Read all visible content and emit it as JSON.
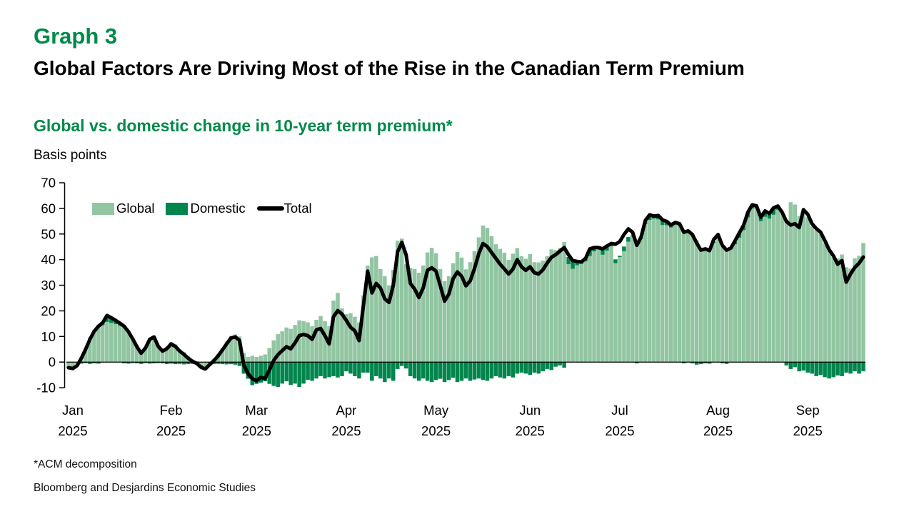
{
  "header": {
    "graph_label": "Graph 3",
    "title": "Global Factors Are Driving Most of the Rise in the Canadian Term Premium",
    "subtitle": "Global vs. domestic change in 10-year term premium*",
    "units_label": "Basis points"
  },
  "legend": {
    "global_label": "Global",
    "domestic_label": "Domestic",
    "total_label": "Total"
  },
  "footnotes": {
    "note": "*ACM decomposition",
    "source": "Bloomberg and Desjardins Economic Studies"
  },
  "colors": {
    "accent_green": "#008a4a",
    "global_bar": "#92c5a2",
    "domestic_bar": "#00854c",
    "total_line": "#000000",
    "axis": "#000000"
  },
  "chart_data": {
    "type": "bar",
    "stacked": true,
    "line_overlay": "Total",
    "title": "Global vs. domestic change in 10-year term premium*",
    "ylabel": "Basis points",
    "ylim": [
      -10,
      70
    ],
    "ytick_step": 10,
    "grid": false,
    "legend_position": "top-left-inside",
    "x_axis": {
      "frequency": "business-daily",
      "months": [
        "Jan",
        "Feb",
        "Mar",
        "Apr",
        "May",
        "Jun",
        "Jul",
        "Aug",
        "Sep"
      ],
      "year": "2025",
      "month_start_indices": [
        0,
        23,
        43,
        64,
        85,
        107,
        128,
        151,
        172
      ]
    },
    "series": [
      {
        "name": "Global",
        "type": "bar",
        "color": "#92c5a2",
        "values": [
          -1.7,
          -1.8,
          -1.0,
          2.1,
          5.4,
          9.6,
          12.5,
          14.6,
          14.4,
          15.7,
          15.3,
          14.8,
          14.2,
          14.5,
          12.5,
          9.5,
          6.5,
          4.2,
          5.9,
          9.5,
          10.3,
          6.5,
          4.8,
          6.0,
          7.7,
          6.9,
          5.0,
          3.9,
          2.3,
          1.0,
          0.4,
          -1.2,
          -1.9,
          -0.1,
          1.3,
          3.1,
          5.5,
          8.0,
          10.2,
          10.8,
          10.0,
          3.5,
          2.0,
          2.5,
          2.0,
          2.5,
          3.0,
          5.5,
          8.5,
          10.9,
          12.0,
          13.5,
          13.0,
          14.5,
          16.3,
          16.0,
          15.5,
          14.0,
          16.5,
          18.0,
          16.0,
          14.0,
          24.0,
          27.0,
          21.0,
          18.7,
          19.1,
          17.7,
          15.5,
          26.0,
          37.7,
          40.9,
          41.4,
          36.3,
          33.5,
          30.0,
          36.0,
          47.4,
          48.2,
          38.2,
          36.8,
          36.3,
          34.9,
          37.7,
          42.8,
          44.6,
          42.5,
          36.3,
          31.6,
          33.5,
          38.6,
          43.0,
          40.8,
          36.2,
          39.0,
          43.3,
          48.7,
          53.3,
          52.4,
          49.2,
          46.0,
          44.2,
          42.7,
          39.9,
          42.3,
          44.5,
          41.3,
          40.3,
          42.2,
          39.0,
          38.9,
          39.6,
          41.3,
          44.0,
          43.7,
          44.6,
          46.9,
          38.2,
          36.4,
          37.8,
          38.3,
          39.3,
          41.4,
          43.2,
          44.2,
          41.9,
          43.5,
          45.3,
          38.6,
          41.0,
          43.3,
          47.0,
          49.0,
          46.0,
          48.0,
          53.8,
          55.5,
          56.0,
          55.7,
          53.5,
          53.4,
          52.5,
          54.0,
          53.0,
          51.2,
          50.7,
          50.3,
          47.5,
          44.5,
          44.7,
          44.1,
          46.5,
          48.5,
          45.0,
          43.5,
          44.0,
          46.0,
          48.5,
          51.5,
          56.5,
          60.0,
          60.0,
          55.0,
          56.7,
          56.0,
          57.5,
          59.5,
          58.0,
          55.5,
          62.4,
          61.5,
          57.0,
          59.0,
          56.5,
          53.0,
          51.5,
          50.0,
          46.5,
          43.5,
          41.0,
          40.5,
          42.0,
          37.0,
          36.5,
          40.5,
          41.5,
          46.5
        ]
      },
      {
        "name": "Domestic",
        "type": "bar",
        "color": "#00854c",
        "values": [
          -0.5,
          -0.7,
          -0.4,
          -0.6,
          -0.4,
          -0.7,
          -0.5,
          -0.6,
          1.0,
          2.5,
          2.0,
          1.5,
          1.0,
          -0.5,
          -0.6,
          -0.4,
          -0.5,
          -0.7,
          -0.4,
          -0.6,
          -0.5,
          -0.4,
          -0.5,
          -0.8,
          -0.6,
          -0.8,
          -0.7,
          -0.9,
          -0.8,
          -0.7,
          -0.9,
          -0.8,
          -0.8,
          -0.9,
          -0.8,
          -0.7,
          -0.8,
          -0.9,
          -0.8,
          -1.0,
          -1.5,
          -4.5,
          -6.5,
          -9.0,
          -8.5,
          -8.0,
          -7.5,
          -8.5,
          -9.3,
          -9.7,
          -8.4,
          -7.5,
          -8.9,
          -8.4,
          -9.7,
          -8.4,
          -6.9,
          -7.3,
          -6.4,
          -5.5,
          -6.4,
          -5.9,
          -5.5,
          -6.0,
          -5.5,
          -3.6,
          -4.5,
          -5.5,
          -6.4,
          -4.1,
          -4.1,
          -7.3,
          -5.5,
          -6.4,
          -7.8,
          -6.4,
          -7.3,
          -2.7,
          -1.5,
          -2.5,
          -5.5,
          -6.4,
          -7.3,
          -6.4,
          -7.3,
          -7.8,
          -7.0,
          -6.5,
          -7.8,
          -7.0,
          -6.1,
          -7.8,
          -7.3,
          -6.4,
          -7.3,
          -6.8,
          -6.4,
          -7.0,
          -7.3,
          -6.4,
          -5.5,
          -6.0,
          -6.4,
          -5.5,
          -6.0,
          -4.5,
          -4.1,
          -4.5,
          -5.0,
          -4.1,
          -4.5,
          -3.6,
          -2.7,
          -3.1,
          -1.8,
          -1.3,
          -2.2,
          2.8,
          3.2,
          1.5,
          0.8,
          1.2,
          2.8,
          1.5,
          0.5,
          2.3,
          1.8,
          1.0,
          1.5,
          0.5,
          1.8,
          1.8,
          0.5,
          -0.5,
          0.5,
          1.5,
          2.0,
          1.0,
          1.5,
          2.0,
          1.5,
          1.0,
          0.5,
          1.0,
          -0.5,
          0.5,
          -0.5,
          -1.0,
          -0.8,
          -0.5,
          -0.6,
          0.5,
          0.5,
          -0.5,
          -0.7,
          0.5,
          1.0,
          2.0,
          1.5,
          2.0,
          1.0,
          0.5,
          1.5,
          2.0,
          1.5,
          2.3,
          1.0,
          0.5,
          -1.3,
          -2.7,
          -2.0,
          -3.6,
          -3.3,
          -4.1,
          -4.5,
          -5.5,
          -5.0,
          -5.9,
          -6.4,
          -5.9,
          -5.2,
          -5.5,
          -4.1,
          -4.5,
          -3.6,
          -4.5,
          -3.6
        ]
      },
      {
        "name": "Total",
        "type": "line",
        "color": "#000000",
        "values": [
          -2.2,
          -2.5,
          -1.4,
          1.5,
          5.0,
          8.9,
          12.0,
          14.0,
          15.4,
          18.2,
          17.3,
          16.3,
          15.2,
          14.0,
          11.9,
          9.1,
          6.0,
          3.5,
          5.5,
          8.9,
          9.8,
          6.1,
          4.3,
          5.2,
          7.1,
          6.1,
          4.3,
          3.0,
          1.5,
          0.3,
          -0.5,
          -2.0,
          -2.7,
          -1.0,
          0.5,
          2.4,
          4.7,
          7.1,
          9.4,
          9.8,
          8.5,
          -1.0,
          -4.5,
          -6.5,
          -7.3,
          -6.0,
          -6.4,
          -3.1,
          0.6,
          2.9,
          4.5,
          6.0,
          5.2,
          7.5,
          10.3,
          10.8,
          10.3,
          8.9,
          12.6,
          13.1,
          10.3,
          7.1,
          17.7,
          20.1,
          18.7,
          16.3,
          13.6,
          12.2,
          8.4,
          22.0,
          35.5,
          27.0,
          30.7,
          28.9,
          24.7,
          23.3,
          30.0,
          43.0,
          46.7,
          41.9,
          30.7,
          28.5,
          25.2,
          29.0,
          35.8,
          36.8,
          35.5,
          29.8,
          23.8,
          26.5,
          32.5,
          35.2,
          33.5,
          29.8,
          31.7,
          36.5,
          42.3,
          46.3,
          45.1,
          42.8,
          40.5,
          38.2,
          36.3,
          34.4,
          36.3,
          40.0,
          37.2,
          35.8,
          37.2,
          34.9,
          34.4,
          36.0,
          38.6,
          40.9,
          41.9,
          43.3,
          44.7,
          41.9,
          39.6,
          39.3,
          39.1,
          40.5,
          44.2,
          44.7,
          44.7,
          44.2,
          45.3,
          46.3,
          46.0,
          47.0,
          49.8,
          52.0,
          50.7,
          45.6,
          48.8,
          55.3,
          57.5,
          57.0,
          57.2,
          55.5,
          54.9,
          53.5,
          54.5,
          54.0,
          50.7,
          51.2,
          49.8,
          46.5,
          43.7,
          44.2,
          43.5,
          47.9,
          49.8,
          45.6,
          43.7,
          44.5,
          47.4,
          50.5,
          53.5,
          58.5,
          61.4,
          61.0,
          56.5,
          59.0,
          58.0,
          60.2,
          60.9,
          58.5,
          54.9,
          53.5,
          54.0,
          52.5,
          59.5,
          57.7,
          54.0,
          52.1,
          50.7,
          47.4,
          43.9,
          41.5,
          38.2,
          39.6,
          31.2,
          34.4,
          36.9,
          38.6,
          41.0
        ]
      }
    ]
  }
}
